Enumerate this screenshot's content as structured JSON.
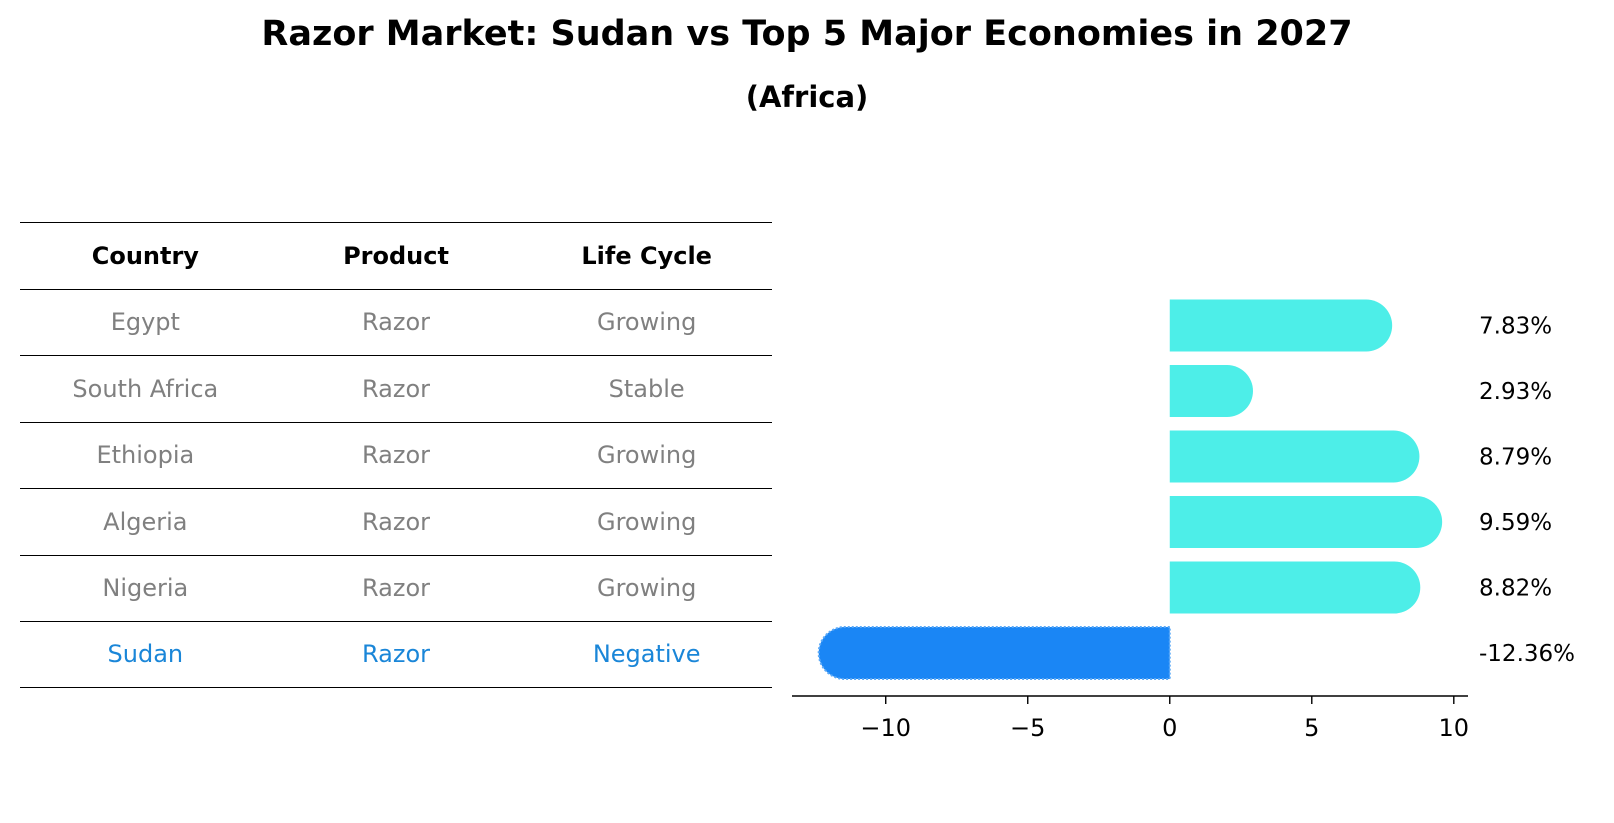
{
  "title": "Razor Market: Sudan vs Top 5 Major Economies in 2027",
  "subtitle": "(Africa)",
  "table": {
    "headers": [
      "Country",
      "Product",
      "Life Cycle"
    ],
    "rows": [
      [
        "Egypt",
        "Razor",
        "Growing"
      ],
      [
        "South Africa",
        "Razor",
        "Stable"
      ],
      [
        "Ethiopia",
        "Razor",
        "Growing"
      ],
      [
        "Algeria",
        "Razor",
        "Growing"
      ],
      [
        "Nigeria",
        "Razor",
        "Growing"
      ],
      [
        "Sudan",
        "Razor",
        "Negative"
      ]
    ]
  },
  "chart_data": {
    "type": "bar",
    "orientation": "horizontal",
    "categories": [
      "Egypt",
      "South Africa",
      "Ethiopia",
      "Algeria",
      "Nigeria",
      "Sudan"
    ],
    "values": [
      7.83,
      2.93,
      8.79,
      9.59,
      8.82,
      -12.36
    ],
    "labels": [
      "7.83%",
      "2.93%",
      "8.79%",
      "9.59%",
      "8.82%",
      "-12.36%"
    ],
    "xlim": [
      -13.3,
      10.5
    ],
    "xticks": [
      -10,
      -5,
      0,
      5,
      10
    ],
    "xtick_labels": [
      "−10",
      "−5",
      "0",
      "5",
      "10"
    ],
    "grid": false,
    "colors": {
      "positive": "#4deee8",
      "highlight": "#1a86f5"
    }
  }
}
